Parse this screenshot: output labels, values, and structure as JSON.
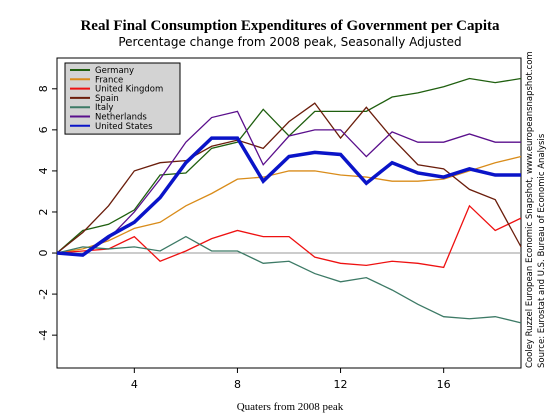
{
  "chart_data": {
    "type": "line",
    "title": "Real Final Consumption Expenditures of Government per Capita",
    "subtitle": "Percentage change from 2008 peak, Seasonally Adjusted",
    "xlabel": "Quaters from 2008 peak",
    "annotations": [
      "Cooley Ruzzel European Economic Snapshot, www.europeansnapshot.com",
      "Source: Eurostat and U.S. Bureau of Economic Analysis"
    ],
    "x": [
      1,
      2,
      3,
      4,
      5,
      6,
      7,
      8,
      9,
      10,
      11,
      12,
      13,
      14,
      15,
      16,
      17,
      18,
      19
    ],
    "series": [
      {
        "name": "Germany",
        "color": "#1f5f0f",
        "values": [
          0,
          1.1,
          1.4,
          2.1,
          3.8,
          3.9,
          5.1,
          5.4,
          7.0,
          5.7,
          6.9,
          6.9,
          6.9,
          7.6,
          7.8,
          8.1,
          8.5,
          8.3,
          8.5
        ]
      },
      {
        "name": "France",
        "color": "#d98c1a",
        "values": [
          0,
          0.2,
          0.6,
          1.2,
          1.5,
          2.3,
          2.9,
          3.6,
          3.7,
          4.0,
          4.0,
          3.8,
          3.7,
          3.5,
          3.5,
          3.6,
          4.0,
          4.4,
          4.7
        ]
      },
      {
        "name": "United Kingdom",
        "color": "#ee1111",
        "values": [
          0,
          0.1,
          0.2,
          0.8,
          -0.4,
          0.1,
          0.7,
          1.1,
          0.8,
          0.8,
          -0.2,
          -0.5,
          -0.6,
          -0.4,
          -0.5,
          -0.7,
          2.3,
          1.1,
          1.7
        ]
      },
      {
        "name": "Spain",
        "color": "#6b1e0c",
        "values": [
          0,
          1.0,
          2.3,
          4.0,
          4.4,
          4.5,
          5.2,
          5.5,
          5.1,
          6.4,
          7.3,
          5.6,
          7.1,
          5.6,
          4.3,
          4.1,
          3.1,
          2.6,
          0.3
        ]
      },
      {
        "name": "Italy",
        "color": "#3d7a66",
        "values": [
          0,
          0.3,
          0.2,
          0.3,
          0.1,
          0.8,
          0.1,
          0.1,
          -0.5,
          -0.4,
          -1.0,
          -1.4,
          -1.2,
          -1.8,
          -2.5,
          -3.1,
          -3.2,
          -3.1,
          -3.4
        ]
      },
      {
        "name": "Netherlands",
        "color": "#5a0f8c",
        "values": [
          0,
          -0.1,
          0.7,
          2.0,
          3.6,
          5.4,
          6.6,
          6.9,
          4.3,
          5.7,
          6.0,
          6.0,
          4.7,
          5.9,
          5.4,
          5.4,
          5.8,
          5.4,
          5.4
        ]
      },
      {
        "name": "United States",
        "color": "#0a14c8",
        "values": [
          0,
          -0.1,
          0.8,
          1.5,
          2.7,
          4.4,
          5.6,
          5.6,
          3.5,
          4.7,
          4.9,
          4.8,
          3.4,
          4.4,
          3.9,
          3.7,
          4.1,
          3.8,
          3.8
        ]
      }
    ],
    "xlim": [
      1,
      19
    ],
    "xticks": [
      4,
      8,
      12,
      16
    ],
    "ylim": [
      -5.6,
      9.5
    ],
    "yticks": [
      -4,
      -2,
      0,
      2,
      4,
      6,
      8
    ],
    "legend": "upper left"
  }
}
